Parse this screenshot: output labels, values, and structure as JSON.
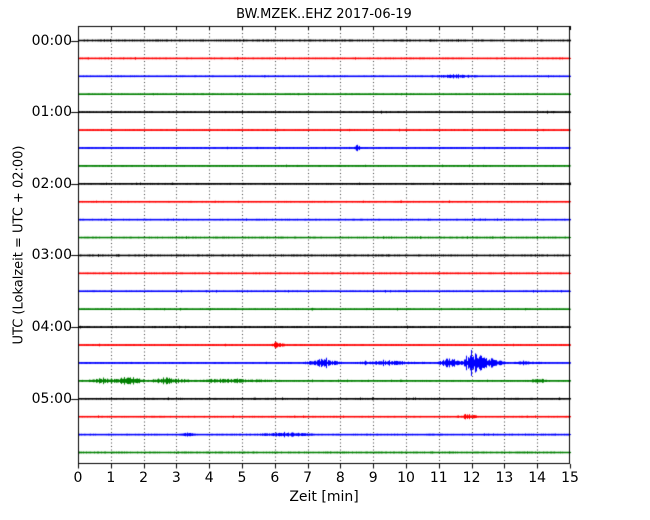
{
  "chart_data": {
    "type": "line",
    "subtype": "helicorder-dayplot",
    "title": "BW.MZEK..EHZ 2017-06-19",
    "xlabel": "Zeit  [min]",
    "ylabel": "UTC (Lokalzeit = UTC + 02:00)",
    "xlim": [
      0,
      15
    ],
    "x_tick_labels": [
      "0",
      "1",
      "2",
      "3",
      "4",
      "5",
      "6",
      "7",
      "8",
      "9",
      "10",
      "11",
      "12",
      "13",
      "14",
      "15"
    ],
    "y_tick_labels": [
      "00:00",
      "01:00",
      "02:00",
      "03:00",
      "04:00",
      "05:00"
    ],
    "grid": "vertical-dotted-per-minute",
    "legend": "none",
    "minutes_per_line": 15,
    "num_lines": 24,
    "color_cycle": [
      "#000000",
      "#ff0000",
      "#0000ff",
      "#008000"
    ],
    "background_color": "#ffffff",
    "axes_color": "#000000",
    "grid_color": "#3c3c3c",
    "bursts_format": "[start_min, end_min, peak_min, peak_amplitude_px] noise bursts visible on each 15-minute trace",
    "traces": [
      {
        "time": "00:00",
        "color": 0,
        "noise": 1.0,
        "bursts": []
      },
      {
        "time": "00:15",
        "color": 1,
        "noise": 0.9,
        "bursts": []
      },
      {
        "time": "00:30",
        "color": 2,
        "noise": 0.9,
        "bursts": [
          [
            10.8,
            12.3,
            11.5,
            1.5
          ]
        ]
      },
      {
        "time": "00:45",
        "color": 3,
        "noise": 0.95,
        "bursts": []
      },
      {
        "time": "01:00",
        "color": 0,
        "noise": 1.0,
        "bursts": []
      },
      {
        "time": "01:15",
        "color": 1,
        "noise": 0.9,
        "bursts": []
      },
      {
        "time": "01:30",
        "color": 2,
        "noise": 0.9,
        "bursts": [
          [
            8.35,
            8.65,
            8.5,
            2.6
          ]
        ]
      },
      {
        "time": "01:45",
        "color": 3,
        "noise": 0.95,
        "bursts": []
      },
      {
        "time": "02:00",
        "color": 0,
        "noise": 1.0,
        "bursts": []
      },
      {
        "time": "02:15",
        "color": 1,
        "noise": 0.9,
        "bursts": []
      },
      {
        "time": "02:30",
        "color": 2,
        "noise": 0.9,
        "bursts": []
      },
      {
        "time": "02:45",
        "color": 3,
        "noise": 0.95,
        "bursts": []
      },
      {
        "time": "03:00",
        "color": 0,
        "noise": 1.0,
        "bursts": []
      },
      {
        "time": "03:15",
        "color": 1,
        "noise": 0.9,
        "bursts": []
      },
      {
        "time": "03:30",
        "color": 2,
        "noise": 0.9,
        "bursts": []
      },
      {
        "time": "03:45",
        "color": 3,
        "noise": 0.95,
        "bursts": []
      },
      {
        "time": "04:00",
        "color": 0,
        "noise": 1.1,
        "bursts": []
      },
      {
        "time": "04:15",
        "color": 1,
        "noise": 0.95,
        "bursts": [
          [
            5.8,
            6.35,
            6.05,
            2.6
          ]
        ]
      },
      {
        "time": "04:30",
        "color": 2,
        "noise": 0.95,
        "bursts": [
          [
            6.8,
            8.2,
            7.4,
            3.2
          ],
          [
            8.2,
            10.9,
            9.5,
            1.7
          ],
          [
            10.9,
            11.75,
            11.3,
            5.0
          ],
          [
            11.6,
            13.2,
            12.05,
            9.0
          ],
          [
            13.2,
            14.3,
            13.5,
            1.5
          ]
        ]
      },
      {
        "time": "04:45",
        "color": 3,
        "noise": 1.0,
        "bursts": [
          [
            0.2,
            1.05,
            0.8,
            2.5
          ],
          [
            0.9,
            2.15,
            1.5,
            4.2
          ],
          [
            2.1,
            3.7,
            2.6,
            2.8
          ],
          [
            3.6,
            6.5,
            4.2,
            1.5
          ],
          [
            13.7,
            14.35,
            14.0,
            2.2
          ]
        ]
      },
      {
        "time": "05:00",
        "color": 0,
        "noise": 1.0,
        "bursts": []
      },
      {
        "time": "05:15",
        "color": 1,
        "noise": 0.9,
        "bursts": [
          [
            11.5,
            12.25,
            11.85,
            2.3
          ]
        ]
      },
      {
        "time": "05:30",
        "color": 2,
        "noise": 0.95,
        "bursts": [
          [
            3.1,
            3.6,
            3.3,
            1.8
          ],
          [
            5.4,
            7.3,
            6.3,
            1.9
          ]
        ]
      },
      {
        "time": "05:45",
        "color": 3,
        "noise": 0.95,
        "bursts": []
      }
    ]
  }
}
